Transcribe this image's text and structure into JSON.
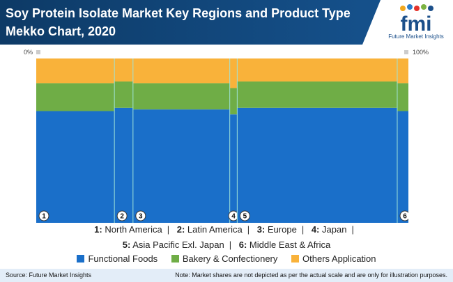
{
  "header": {
    "title_line1": "Soy Protein Isolate Market Key Regions and Product Type",
    "title_line2": "Mekko Chart, 2020"
  },
  "logo": {
    "mark": "fmi",
    "name": "Future Market Insights",
    "icon": "fmi-logo-icon"
  },
  "axis": {
    "left_label": "0%",
    "right_label": "100%"
  },
  "regions_legend": [
    {
      "num": "1:",
      "name": "North America"
    },
    {
      "num": "2:",
      "name": "Latin America"
    },
    {
      "num": "3:",
      "name": "Europe"
    },
    {
      "num": "4:",
      "name": "Japan"
    },
    {
      "num": "5:",
      "name": "Asia Pacific Exl. Japan"
    },
    {
      "num": "6:",
      "name": "Middle East & Africa"
    }
  ],
  "separator": "|",
  "footer": {
    "source": "Source: Future Market Insights",
    "note": "Note: Market shares are not depicted as per the actual scale and are only for illustration purposes."
  },
  "chart_data": {
    "type": "bar",
    "subtype": "mekko",
    "title": "Soy Protein Isolate Market Key Regions and Product Type Mekko Chart, 2020",
    "xlim": [
      0,
      100
    ],
    "ylim": [
      0,
      100
    ],
    "categories": [
      "1",
      "2",
      "3",
      "4",
      "5",
      "6"
    ],
    "widths": [
      21,
      5,
      26,
      2,
      43,
      3
    ],
    "series": [
      {
        "name": "Functional Foods",
        "color": "#1a6fc9",
        "values": [
          68,
          70,
          69,
          66,
          70,
          68
        ]
      },
      {
        "name": "Bakery & Confectionery",
        "color": "#6fad46",
        "values": [
          17,
          16,
          16,
          16,
          16,
          17
        ]
      },
      {
        "name": "Others Application",
        "color": "#f9b23a",
        "values": [
          15,
          14,
          15,
          18,
          14,
          15
        ]
      }
    ],
    "legend_position": "bottom",
    "grid": false
  }
}
